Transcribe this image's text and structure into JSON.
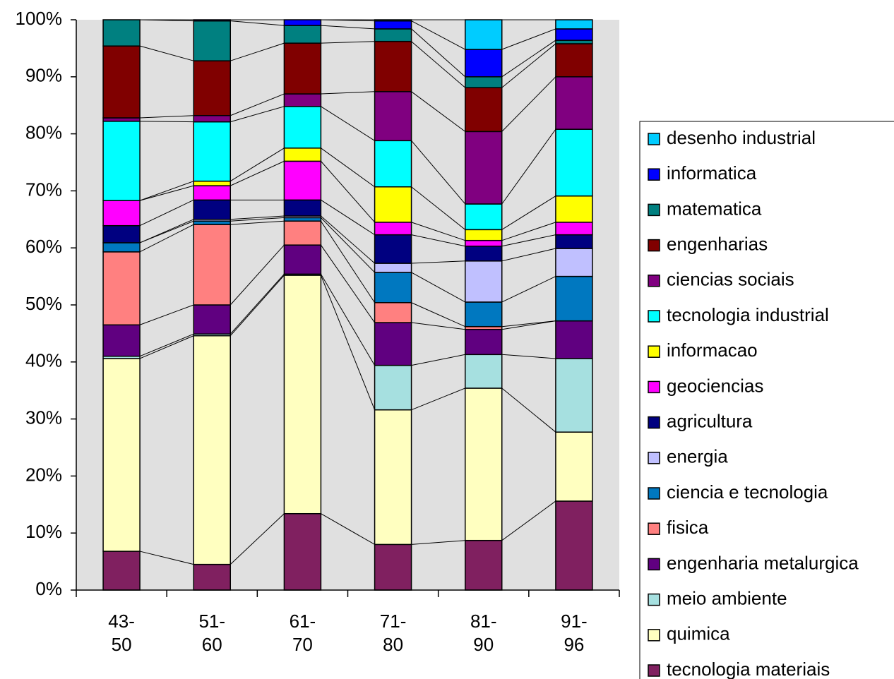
{
  "chart_data": {
    "type": "stacked_bar_100",
    "categories": [
      "43-50",
      "51-60",
      "61-70",
      "71-80",
      "81-90",
      "91-96"
    ],
    "ylim": [
      0,
      100
    ],
    "yticks": [
      {
        "value": 0,
        "label": "0%"
      },
      {
        "value": 10,
        "label": "10%"
      },
      {
        "value": 20,
        "label": "20%"
      },
      {
        "value": 30,
        "label": "30%"
      },
      {
        "value": 40,
        "label": "40%"
      },
      {
        "value": 50,
        "label": "50%"
      },
      {
        "value": 60,
        "label": "60%"
      },
      {
        "value": 70,
        "label": "70%"
      },
      {
        "value": 80,
        "label": "80%"
      },
      {
        "value": 90,
        "label": "90%"
      },
      {
        "value": 100,
        "label": "100%"
      }
    ],
    "series": [
      {
        "name": "tecnologia materiais",
        "color": "#802060",
        "values": [
          6.8,
          4.5,
          13.4,
          8.0,
          8.7,
          15.6
        ]
      },
      {
        "name": "quimica",
        "color": "#ffffc0",
        "values": [
          33.8,
          40.1,
          41.8,
          23.6,
          26.7,
          12.1
        ]
      },
      {
        "name": "meio ambiente",
        "color": "#a6e0e0",
        "values": [
          0.4,
          0.3,
          0.2,
          7.8,
          5.9,
          12.9
        ]
      },
      {
        "name": "engenharia metalurgica",
        "color": "#600080",
        "values": [
          5.5,
          5.1,
          5.1,
          7.5,
          4.4,
          6.6
        ]
      },
      {
        "name": "fisica",
        "color": "#ff8080",
        "values": [
          12.8,
          14.1,
          4.2,
          3.5,
          0.5,
          0
        ]
      },
      {
        "name": "ciencia e tecnologia",
        "color": "#0078c0",
        "values": [
          1.6,
          0.6,
          0.6,
          5.3,
          4.3,
          7.8
        ]
      },
      {
        "name": "energia",
        "color": "#c0c0ff",
        "values": [
          0,
          0.3,
          0.3,
          1.6,
          7.2,
          4.9
        ]
      },
      {
        "name": "agricultura",
        "color": "#000080",
        "values": [
          3.0,
          3.4,
          2.8,
          5.0,
          2.6,
          2.4
        ]
      },
      {
        "name": "geociencias",
        "color": "#ff00ff",
        "values": [
          4.4,
          2.5,
          6.8,
          2.2,
          1.0,
          2.2
        ]
      },
      {
        "name": "informacao",
        "color": "#ffff00",
        "values": [
          0,
          0.8,
          2.3,
          6.2,
          1.9,
          4.6
        ]
      },
      {
        "name": "tecnologia industrial",
        "color": "#00ffff",
        "values": [
          13.9,
          10.4,
          7.3,
          8.1,
          4.5,
          11.7
        ]
      },
      {
        "name": "ciencias sociais",
        "color": "#800080",
        "values": [
          0.6,
          1.1,
          2.2,
          8.6,
          12.7,
          9.2
        ]
      },
      {
        "name": "engenharias",
        "color": "#800000",
        "values": [
          12.6,
          9.6,
          8.9,
          8.8,
          7.7,
          5.8
        ]
      },
      {
        "name": "matematica",
        "color": "#008080",
        "values": [
          4.6,
          7.0,
          3.1,
          2.2,
          1.9,
          0.6
        ]
      },
      {
        "name": "informatica",
        "color": "#0000ff",
        "values": [
          0,
          0.2,
          1.0,
          1.4,
          4.8,
          2.0
        ]
      },
      {
        "name": "desenho industrial",
        "color": "#00ccff",
        "values": [
          0,
          0,
          0,
          0.2,
          5.2,
          1.6
        ]
      }
    ]
  }
}
